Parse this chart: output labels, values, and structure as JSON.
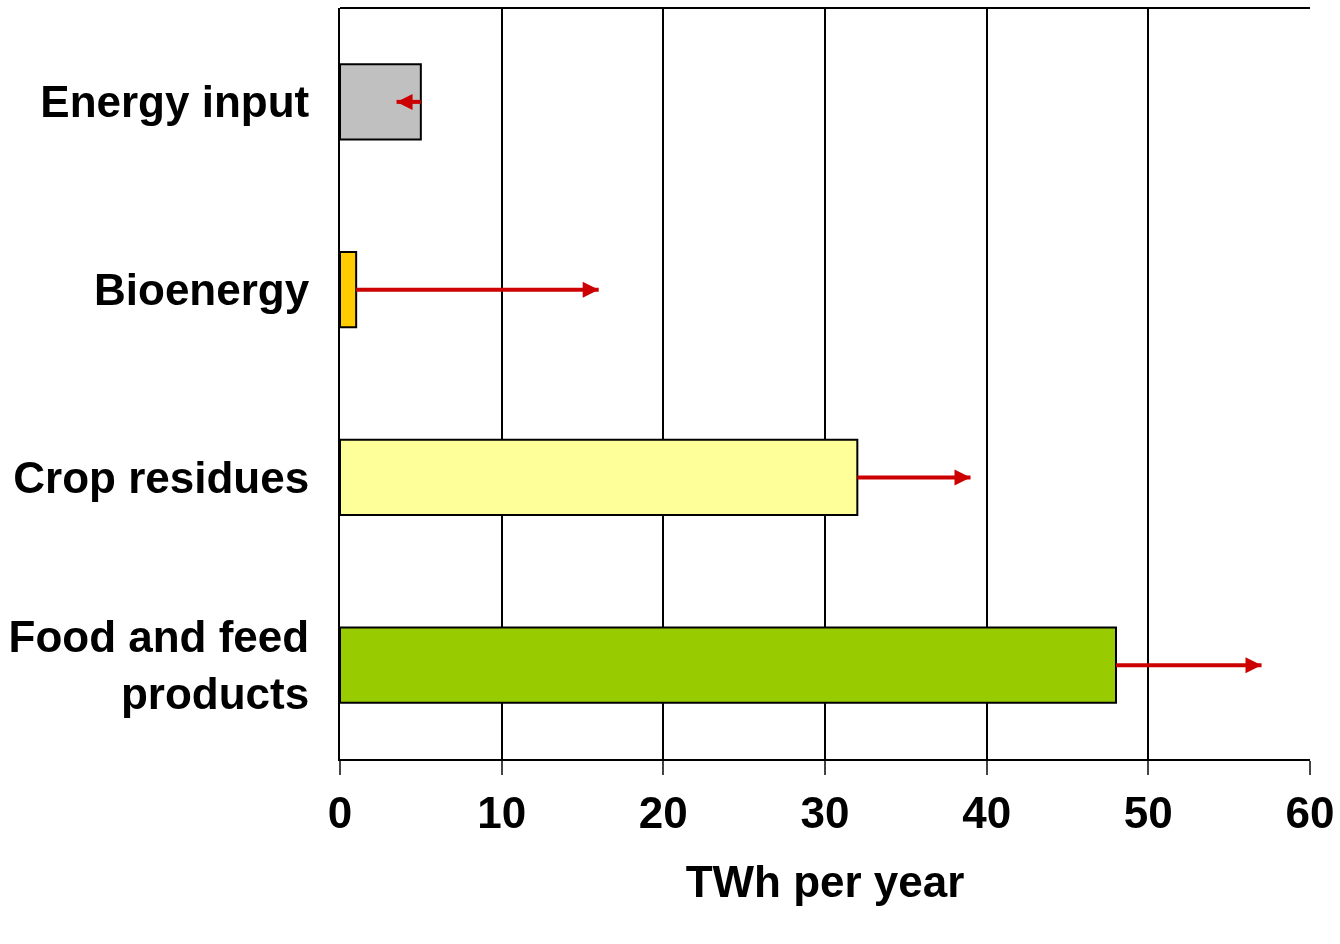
{
  "chart_data": {
    "type": "bar",
    "orientation": "horizontal",
    "xlabel": "TWh per year",
    "categories": [
      "Energy input",
      "Bioenergy",
      "Crop residues",
      "Food and feed\nproducts"
    ],
    "series": [
      {
        "colors": [
          "#c0c0c0",
          "#ffcc00",
          "#ffff99",
          "#99cc00"
        ],
        "values": [
          5,
          1,
          32,
          48
        ],
        "errors": [
          [
            3.5,
            5
          ],
          [
            1,
            16
          ],
          [
            32,
            39
          ],
          [
            48,
            57
          ]
        ]
      }
    ],
    "xlim": [
      0,
      60
    ],
    "xticks": [
      0,
      10,
      20,
      30,
      40,
      50,
      60
    ],
    "grid": "x",
    "legend": false
  }
}
